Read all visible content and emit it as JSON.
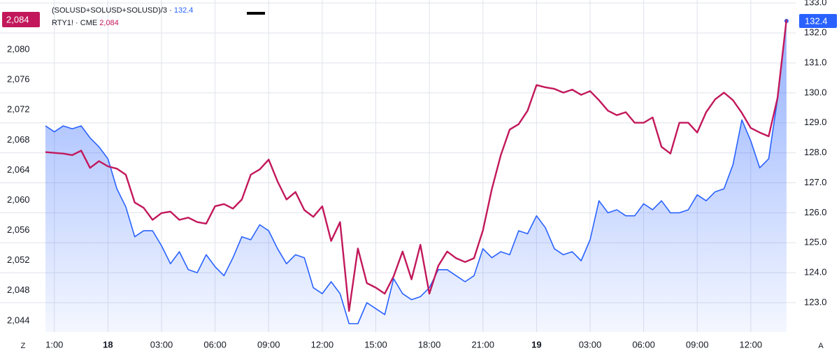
{
  "chart_data": {
    "type": "line",
    "categories": [
      null,
      "1:00",
      null,
      null,
      null,
      null,
      null,
      "18",
      null,
      null,
      null,
      null,
      null,
      "03:00",
      null,
      null,
      null,
      null,
      null,
      "06:00",
      null,
      null,
      null,
      null,
      null,
      "09:00",
      null,
      null,
      null,
      null,
      null,
      "12:00",
      null,
      null,
      null,
      null,
      null,
      "15:00",
      null,
      null,
      null,
      null,
      null,
      "18:00",
      null,
      null,
      null,
      null,
      null,
      "21:00",
      null,
      null,
      null,
      null,
      null,
      "19",
      null,
      null,
      null,
      null,
      null,
      "03:00",
      null,
      null,
      null,
      null,
      null,
      "06:00",
      null,
      null,
      null,
      null,
      null,
      "09:00",
      null,
      null,
      null,
      null,
      null,
      "12:00",
      null,
      null,
      null,
      null
    ],
    "series": [
      {
        "name": "(SOLUSD+SOLUSD+SOLUSD)/3 ·",
        "last_label": "132.4",
        "color": "#2962ff",
        "axis": "y2",
        "area": true,
        "values": [
          128.9,
          128.7,
          128.9,
          128.8,
          128.9,
          128.5,
          128.2,
          127.8,
          126.8,
          126.2,
          125.2,
          125.4,
          125.4,
          124.9,
          124.3,
          124.7,
          124.1,
          124.0,
          124.6,
          124.2,
          123.9,
          124.5,
          125.2,
          125.1,
          125.6,
          125.4,
          124.8,
          124.3,
          124.6,
          124.5,
          123.5,
          123.3,
          123.7,
          123.3,
          122.3,
          122.3,
          123.0,
          122.8,
          122.6,
          123.8,
          123.3,
          123.1,
          123.2,
          123.5,
          124.1,
          124.1,
          123.9,
          123.7,
          123.9,
          124.8,
          124.5,
          124.7,
          124.6,
          125.4,
          125.3,
          125.9,
          125.5,
          124.8,
          124.6,
          124.7,
          124.4,
          125.1,
          126.4,
          126.0,
          126.1,
          125.9,
          125.9,
          126.3,
          126.1,
          126.4,
          126.0,
          126.0,
          126.1,
          126.6,
          126.4,
          126.7,
          126.8,
          127.6,
          129.1,
          128.4,
          127.5,
          127.8,
          129.8,
          132.4
        ]
      },
      {
        "name": "RTY1! · CME",
        "last_label": "2,084",
        "color": "#c2185b",
        "axis": "y",
        "values": [
          2066.4,
          2066.3,
          2066.2,
          2066.0,
          2066.6,
          2064.3,
          2065.2,
          2064.5,
          2064.2,
          2063.4,
          2059.7,
          2059.0,
          2057.4,
          2058.3,
          2058.5,
          2057.4,
          2057.7,
          2057.1,
          2056.9,
          2059.2,
          2059.5,
          2058.9,
          2060.1,
          2063.4,
          2064.1,
          2065.4,
          2062.5,
          2060.1,
          2061.1,
          2058.7,
          2057.8,
          2059.2,
          2054.6,
          2057.1,
          2045.3,
          2053.6,
          2049.0,
          2048.4,
          2047.6,
          2049.9,
          2053.2,
          2049.5,
          2054.1,
          2047.6,
          2051.3,
          2053.2,
          2052.3,
          2051.8,
          2052.3,
          2056.0,
          2061.5,
          2066.0,
          2069.4,
          2070.1,
          2071.9,
          2075.3,
          2075.0,
          2074.8,
          2074.3,
          2074.7,
          2074.0,
          2074.5,
          2073.3,
          2071.9,
          2071.3,
          2071.7,
          2070.3,
          2070.3,
          2071.0,
          2067.1,
          2066.2,
          2070.3,
          2070.3,
          2069.0,
          2071.7,
          2073.4,
          2074.3,
          2073.3,
          2071.6,
          2069.6,
          2069.0,
          2068.5,
          2073.6,
          2084.0
        ]
      }
    ],
    "ylim": [
      2042.5,
      2086.6
    ],
    "yticks": [
      {
        "value": 2044,
        "label": "2,044"
      },
      {
        "value": 2048,
        "label": "2,048"
      },
      {
        "value": 2052,
        "label": "2,052"
      },
      {
        "value": 2056,
        "label": "2,056"
      },
      {
        "value": 2060,
        "label": "2,060"
      },
      {
        "value": 2064,
        "label": "2,064"
      },
      {
        "value": 2068,
        "label": "2,068"
      },
      {
        "value": 2072,
        "label": "2,072"
      },
      {
        "value": 2076,
        "label": "2,076"
      },
      {
        "value": 2080,
        "label": "2,080"
      }
    ],
    "y2lim": [
      122.02,
      133.1
    ],
    "y2ticks": [
      {
        "value": 123,
        "label": "123.0"
      },
      {
        "value": 124,
        "label": "124.0"
      },
      {
        "value": 125,
        "label": "125.0"
      },
      {
        "value": 126,
        "label": "126.0"
      },
      {
        "value": 127,
        "label": "127.0"
      },
      {
        "value": 128,
        "label": "128.0"
      },
      {
        "value": 129,
        "label": "129.0"
      },
      {
        "value": 130,
        "label": "130.0"
      },
      {
        "value": 131,
        "label": "131.0"
      },
      {
        "value": 132,
        "label": "132.0"
      },
      {
        "value": 133,
        "label": "133.0"
      }
    ],
    "grid": true,
    "buttons": {
      "left": "Z",
      "right": "A"
    }
  }
}
